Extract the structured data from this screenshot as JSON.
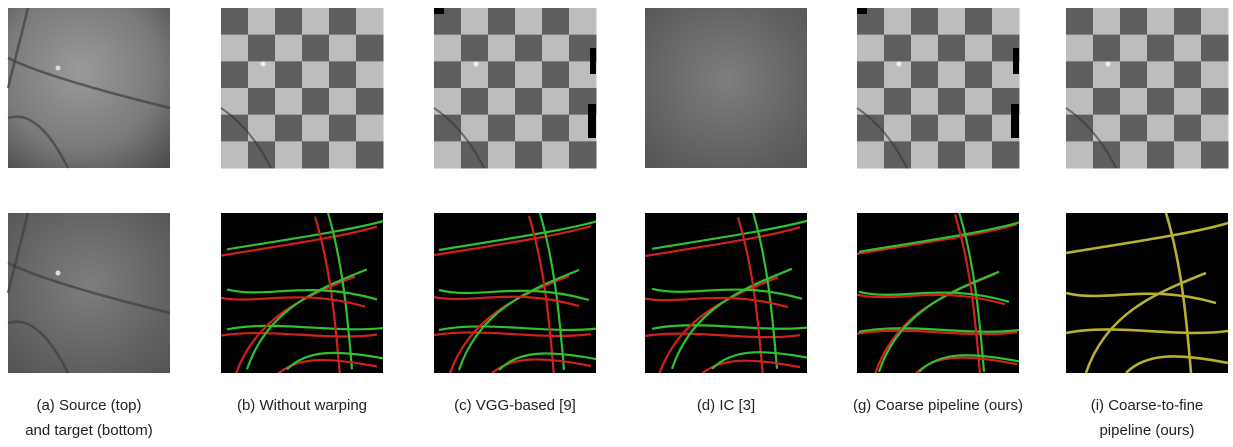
{
  "figure": {
    "captions": [
      {
        "lines": [
          "(a) Source (top)",
          "and target  (bottom)"
        ]
      },
      {
        "lines": [
          "(b) Without warping"
        ]
      },
      {
        "lines": [
          "(c) VGG-based [9]"
        ]
      },
      {
        "lines": [
          "(d) IC [3]"
        ]
      },
      {
        "lines": [
          "(g) Coarse pipeline (ours)"
        ]
      },
      {
        "lines": [
          "(i) Coarse-to-fine",
          "pipeline (ours)"
        ]
      }
    ]
  }
}
